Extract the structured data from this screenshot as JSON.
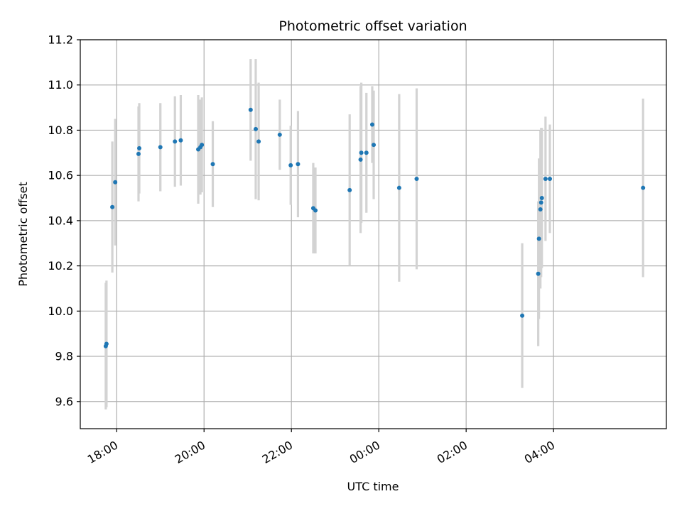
{
  "chart_data": {
    "type": "scatter",
    "title": "Photometric offset variation",
    "xlabel": "UTC time",
    "ylabel": "Photometric offset",
    "x_axis": {
      "kind": "time",
      "range": [
        "17:10",
        "30:35"
      ],
      "ticks": [
        {
          "value": "18:00",
          "label": "18:00"
        },
        {
          "value": "20:00",
          "label": "20:00"
        },
        {
          "value": "22:00",
          "label": "22:00"
        },
        {
          "value": "24:00",
          "label": "00:00"
        },
        {
          "value": "26:00",
          "label": "02:00"
        },
        {
          "value": "28:00",
          "label": "04:00"
        }
      ]
    },
    "y_axis": {
      "range": [
        9.48,
        11.2
      ],
      "ticks": [
        9.6,
        9.8,
        10.0,
        10.2,
        10.4,
        10.6,
        10.8,
        11.0,
        11.2
      ],
      "tick_labels": [
        "9.6",
        "9.8",
        "10.0",
        "10.2",
        "10.4",
        "10.6",
        "10.8",
        "11.0",
        "11.2"
      ]
    },
    "grid": true,
    "series": [
      {
        "marker_color": "#1f77b4",
        "errorbar_color": "#d3d3d3",
        "points": [
          {
            "x": "17:45",
            "y": 9.845,
            "err": 0.28
          },
          {
            "x": "17:46",
            "y": 9.855,
            "err": 0.28
          },
          {
            "x": "17:54",
            "y": 10.46,
            "err": 0.29
          },
          {
            "x": "17:58",
            "y": 10.57,
            "err": 0.28
          },
          {
            "x": "18:30",
            "y": 10.695,
            "err": 0.21
          },
          {
            "x": "18:31",
            "y": 10.72,
            "err": 0.2
          },
          {
            "x": "19:00",
            "y": 10.725,
            "err": 0.195
          },
          {
            "x": "19:20",
            "y": 10.75,
            "err": 0.2
          },
          {
            "x": "19:28",
            "y": 10.755,
            "err": 0.2
          },
          {
            "x": "19:52",
            "y": 10.715,
            "err": 0.24
          },
          {
            "x": "19:55",
            "y": 10.725,
            "err": 0.21
          },
          {
            "x": "19:57",
            "y": 10.735,
            "err": 0.21
          },
          {
            "x": "20:12",
            "y": 10.65,
            "err": 0.19
          },
          {
            "x": "21:04",
            "y": 10.89,
            "err": 0.225
          },
          {
            "x": "21:11",
            "y": 10.805,
            "err": 0.31
          },
          {
            "x": "21:15",
            "y": 10.75,
            "err": 0.26
          },
          {
            "x": "21:44",
            "y": 10.78,
            "err": 0.155
          },
          {
            "x": "21:59",
            "y": 10.645,
            "err": 0.175
          },
          {
            "x": "22:09",
            "y": 10.65,
            "err": 0.235
          },
          {
            "x": "22:30",
            "y": 10.455,
            "err": 0.2
          },
          {
            "x": "22:33",
            "y": 10.445,
            "err": 0.19
          },
          {
            "x": "23:20",
            "y": 10.535,
            "err": 0.335
          },
          {
            "x": "23:35",
            "y": 10.67,
            "err": 0.325
          },
          {
            "x": "23:36",
            "y": 10.7,
            "err": 0.31
          },
          {
            "x": "23:43",
            "y": 10.7,
            "err": 0.265
          },
          {
            "x": "23:51",
            "y": 10.825,
            "err": 0.17
          },
          {
            "x": "23:53",
            "y": 10.735,
            "err": 0.24
          },
          {
            "x": "24:28",
            "y": 10.545,
            "err": 0.415
          },
          {
            "x": "24:52",
            "y": 10.585,
            "err": 0.4
          },
          {
            "x": "27:17",
            "y": 9.98,
            "err": 0.32
          },
          {
            "x": "27:39",
            "y": 10.165,
            "err": 0.32
          },
          {
            "x": "27:40",
            "y": 10.32,
            "err": 0.355
          },
          {
            "x": "27:42",
            "y": 10.45,
            "err": 0.35
          },
          {
            "x": "27:43",
            "y": 10.48,
            "err": 0.33
          },
          {
            "x": "27:44",
            "y": 10.5,
            "err": 0.31
          },
          {
            "x": "27:49",
            "y": 10.585,
            "err": 0.275
          },
          {
            "x": "27:55",
            "y": 10.585,
            "err": 0.24
          },
          {
            "x": "30:03",
            "y": 10.545,
            "err": 0.395
          }
        ]
      }
    ]
  }
}
